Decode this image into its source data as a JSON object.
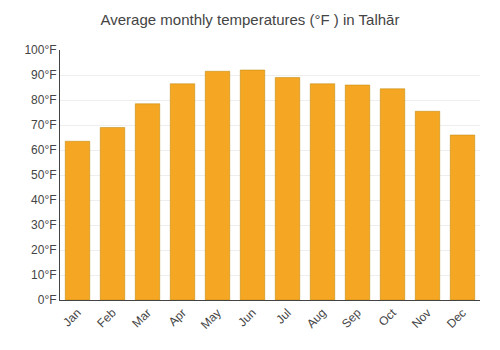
{
  "chart_data": {
    "type": "bar",
    "title": "Average monthly temperatures (°F ) in Talhār",
    "categories": [
      "Jan",
      "Feb",
      "Mar",
      "Apr",
      "May",
      "Jun",
      "Jul",
      "Aug",
      "Sep",
      "Oct",
      "Nov",
      "Dec"
    ],
    "values": [
      63.5,
      69.0,
      78.5,
      86.5,
      91.5,
      92.0,
      89.0,
      86.5,
      86.0,
      84.5,
      75.5,
      66.0
    ],
    "color": "#F5A623",
    "ylim": [
      0,
      100
    ],
    "yticks": [
      {
        "value": 0,
        "label": "0°F"
      },
      {
        "value": 10,
        "label": "10°F"
      },
      {
        "value": 20,
        "label": "20°F"
      },
      {
        "value": 30,
        "label": "30°F"
      },
      {
        "value": 40,
        "label": "40°F"
      },
      {
        "value": 50,
        "label": "50°F"
      },
      {
        "value": 60,
        "label": "60°F"
      },
      {
        "value": 70,
        "label": "70°F"
      },
      {
        "value": 80,
        "label": "80°F"
      },
      {
        "value": 90,
        "label": "90°F"
      },
      {
        "value": 100,
        "label": "100°F"
      }
    ],
    "grid": true
  }
}
